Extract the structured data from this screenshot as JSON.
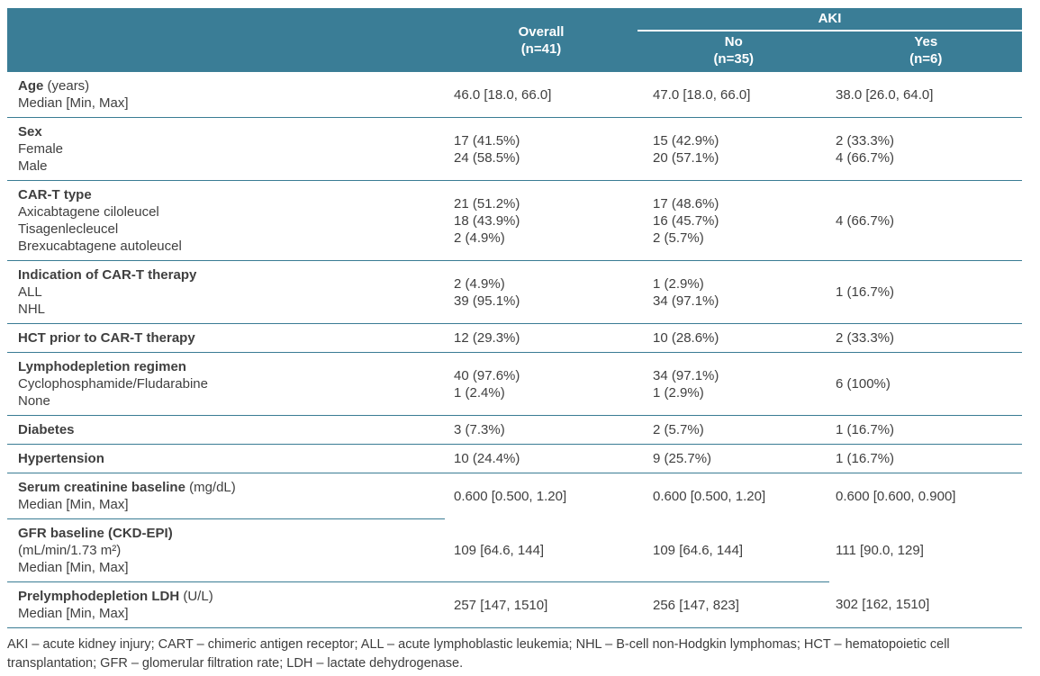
{
  "colors": {
    "header_background": "#3a7d96",
    "row_divider": "#3a7c94",
    "header_text": "#ffffff",
    "body_text": "#3f3f3f"
  },
  "table": {
    "header": {
      "overall": {
        "line1": "Overall",
        "line2": "(n=41)"
      },
      "aki_group": {
        "label": "AKI",
        "no": {
          "line1": "No",
          "line2": "(n=35)"
        },
        "yes": {
          "line1": "Yes",
          "line2": "(n=6)"
        }
      }
    },
    "rows": [
      {
        "label": {
          "bold": "Age",
          "rest": " (years)"
        },
        "sub": [
          "Median [Min, Max]"
        ],
        "overall": [
          "46.0 [18.0, 66.0]"
        ],
        "no": [
          "47.0 [18.0, 66.0]"
        ],
        "yes": [
          "38.0 [26.0, 64.0]"
        ],
        "borders": [
          1,
          1,
          1,
          1
        ]
      },
      {
        "label": {
          "bold": "Sex",
          "rest": ""
        },
        "sub": [
          "Female",
          "Male"
        ],
        "overall": [
          "17 (41.5%)",
          "24 (58.5%)"
        ],
        "no": [
          "15 (42.9%)",
          "20 (57.1%)"
        ],
        "yes": [
          "2 (33.3%)",
          "4 (66.7%)"
        ],
        "borders": [
          1,
          1,
          1,
          1
        ]
      },
      {
        "label": {
          "bold": "CAR-T type",
          "rest": ""
        },
        "sub": [
          "Axicabtagene ciloleucel",
          "Tisagenlecleucel",
          "Brexucabtagene autoleucel"
        ],
        "overall": [
          "21 (51.2%)",
          "18 (43.9%)",
          "2 (4.9%)"
        ],
        "no": [
          "17 (48.6%)",
          "16 (45.7%)",
          "2 (5.7%)"
        ],
        "yes": [
          "4 (66.7%)"
        ],
        "borders": [
          1,
          1,
          1,
          1
        ]
      },
      {
        "label": {
          "bold": "Indication of CAR-T therapy",
          "rest": ""
        },
        "sub": [
          "ALL",
          "NHL"
        ],
        "overall": [
          "2 (4.9%)",
          "39 (95.1%)"
        ],
        "no": [
          "1 (2.9%)",
          "34 (97.1%)"
        ],
        "yes": [
          "1 (16.7%)"
        ],
        "borders": [
          1,
          1,
          1,
          1
        ]
      },
      {
        "label": {
          "bold": "HCT prior to CAR-T therapy",
          "rest": ""
        },
        "sub": [],
        "overall": [
          "12 (29.3%)"
        ],
        "no": [
          "10 (28.6%)"
        ],
        "yes": [
          "2 (33.3%)"
        ],
        "borders": [
          1,
          1,
          1,
          1
        ]
      },
      {
        "label": {
          "bold": "Lymphodepletion regimen",
          "rest": ""
        },
        "sub": [
          "Cyclophosphamide/Fludarabine",
          "None"
        ],
        "overall": [
          "40 (97.6%)",
          "1 (2.4%)"
        ],
        "no": [
          "34 (97.1%)",
          "1 (2.9%)"
        ],
        "yes": [
          "6 (100%)"
        ],
        "borders": [
          1,
          1,
          1,
          1
        ]
      },
      {
        "label": {
          "bold": "Diabetes",
          "rest": ""
        },
        "sub": [],
        "overall": [
          "3 (7.3%)"
        ],
        "no": [
          "2 (5.7%)"
        ],
        "yes": [
          "1 (16.7%)"
        ],
        "borders": [
          1,
          1,
          1,
          1
        ]
      },
      {
        "label": {
          "bold": "Hypertension",
          "rest": ""
        },
        "sub": [],
        "overall": [
          "10 (24.4%)"
        ],
        "no": [
          "9 (25.7%)"
        ],
        "yes": [
          "1 (16.7%)"
        ],
        "borders": [
          1,
          1,
          1,
          1
        ]
      },
      {
        "label": {
          "bold": "Serum creatinine baseline",
          "rest": " (mg/dL)"
        },
        "sub": [
          "Median [Min, Max]"
        ],
        "overall": [
          "0.600 [0.500, 1.20]"
        ],
        "no": [
          "0.600 [0.500, 1.20]"
        ],
        "yes": [
          "0.600 [0.600, 0.900]"
        ],
        "borders": [
          1,
          0,
          0,
          0
        ]
      },
      {
        "label": {
          "bold": "GFR baseline (CKD-EPI)",
          "rest": ""
        },
        "sub": [
          "(mL/min/1.73 m²)",
          "Median [Min, Max]"
        ],
        "overall": [
          "109 [64.6, 144]"
        ],
        "no": [
          "109 [64.6, 144]"
        ],
        "yes": [
          "111 [90.0, 129]"
        ],
        "borders": [
          1,
          1,
          1,
          0
        ]
      },
      {
        "label": {
          "bold": "Prelymphodepletion LDH",
          "rest": " (U/L)"
        },
        "sub": [
          "Median [Min, Max]"
        ],
        "overall": [
          "257 [147, 1510]"
        ],
        "no": [
          "256 [147, 823]"
        ],
        "yes": [
          "302 [162, 1510]"
        ],
        "borders": [
          1,
          1,
          1,
          1
        ]
      }
    ],
    "footnote": {
      "line1": "AKI – acute kidney injury; CART – chimeric antigen receptor; ALL – acute lymphoblastic leukemia; NHL – B-cell non-Hodgkin lymphomas; HCT – hematopoietic cell",
      "line2": "transplantation; GFR – glomerular filtration rate; LDH – lactate dehydrogenase."
    }
  }
}
